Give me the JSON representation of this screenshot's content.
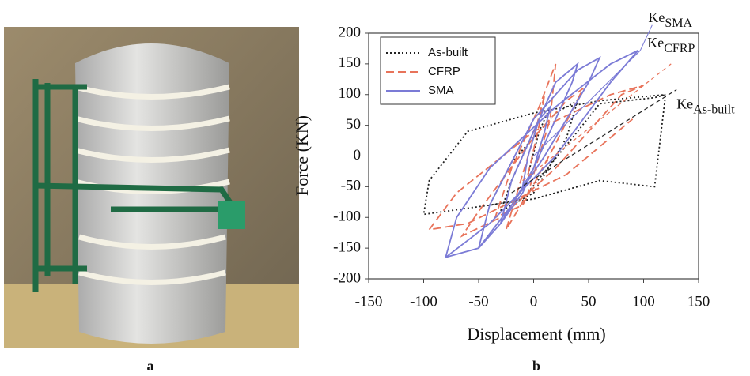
{
  "chart_data": {
    "type": "line",
    "x_label": "Displacement (mm)",
    "y_label": "Force (KN)",
    "xlim": [
      -150,
      150
    ],
    "xticks": [
      -150,
      -100,
      -50,
      0,
      50,
      100,
      150
    ],
    "ylim": [
      -200,
      200
    ],
    "yticks": [
      -200,
      -150,
      -100,
      -50,
      0,
      50,
      100,
      150,
      200
    ],
    "legend": "upper left",
    "series": [
      {
        "name": "As-built",
        "color": "#222222",
        "dash": "dotted",
        "x": [
          -5,
          5,
          15,
          5,
          -20,
          -30,
          0,
          30,
          40,
          20,
          -20,
          -40,
          -10,
          40,
          60,
          110,
          120,
          110,
          60,
          0,
          -100,
          -95,
          -60,
          0,
          60,
          120
        ],
        "values": [
          -30,
          40,
          80,
          60,
          -40,
          -90,
          -60,
          30,
          90,
          70,
          -10,
          -80,
          -70,
          40,
          85,
          95,
          100,
          -50,
          -40,
          -70,
          -95,
          -40,
          40,
          70,
          90,
          100
        ]
      },
      {
        "name": "CFRP",
        "color": "#e8735a",
        "dash": "dashed",
        "x": [
          -5,
          5,
          10,
          0,
          -15,
          -25,
          -5,
          15,
          20,
          5,
          -20,
          -35,
          -10,
          20,
          45,
          30,
          0,
          -50,
          -65,
          -30,
          20,
          80,
          100,
          70,
          0,
          -70,
          -95,
          -60,
          30,
          90
        ],
        "values": [
          -30,
          50,
          100,
          30,
          -60,
          -120,
          -60,
          60,
          150,
          80,
          -20,
          -100,
          -80,
          20,
          110,
          90,
          30,
          -90,
          -130,
          -100,
          -20,
          100,
          115,
          100,
          40,
          -60,
          -120,
          -110,
          -30,
          60
        ]
      },
      {
        "name": "SMA",
        "color": "#7b7bd6",
        "dash": "solid",
        "x": [
          -10,
          0,
          10,
          15,
          5,
          -5,
          -10,
          -30,
          -10,
          10,
          35,
          40,
          20,
          0,
          -20,
          -30,
          -50,
          -20,
          10,
          50,
          60,
          40,
          0,
          -40,
          -50,
          -80,
          -40,
          20,
          70,
          95,
          70,
          20,
          -40,
          -70,
          -80
        ],
        "values": [
          -50,
          -20,
          40,
          80,
          60,
          0,
          -50,
          -110,
          -60,
          20,
          120,
          150,
          120,
          40,
          -40,
          -110,
          -150,
          -80,
          0,
          120,
          160,
          140,
          60,
          -80,
          -150,
          -165,
          -110,
          0,
          120,
          172,
          150,
          80,
          -20,
          -100,
          -165
        ]
      }
    ],
    "annotations": [
      {
        "text": "Ke",
        "sub": "SMA",
        "line": [
          0,
          0,
          97,
          172
        ]
      },
      {
        "text": "Ke",
        "sub": "CFRP",
        "line": [
          -10,
          -40,
          125,
          150
        ]
      },
      {
        "text": "Ke",
        "sub": "As-built",
        "line": [
          -20,
          -60,
          130,
          108
        ]
      }
    ]
  },
  "panel_labels": [
    "a",
    "b"
  ]
}
